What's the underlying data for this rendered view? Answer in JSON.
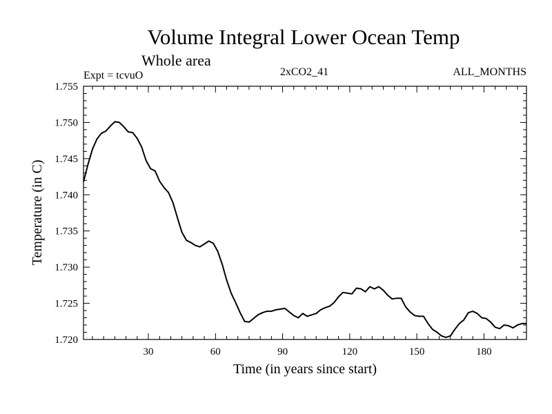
{
  "chart_data": {
    "type": "line",
    "title": "Volume Integral Lower Ocean Temp",
    "subtitle": "Whole area",
    "header_left": "Expt = tcvuO",
    "header_center": "2xCO2_41",
    "header_right": "ALL_MONTHS",
    "xlabel": "Time (in years since start)",
    "ylabel": "Temperature (in C)",
    "xlim": [
      1,
      199
    ],
    "ylim": [
      1.72,
      1.755
    ],
    "xticks": [
      30,
      60,
      90,
      120,
      150,
      180
    ],
    "xtick_labels": [
      "30",
      "60",
      "90",
      "120",
      "150",
      "180"
    ],
    "yticks": [
      1.72,
      1.725,
      1.73,
      1.735,
      1.74,
      1.745,
      1.75,
      1.755
    ],
    "ytick_labels": [
      "1.720",
      "1.725",
      "1.730",
      "1.735",
      "1.740",
      "1.745",
      "1.750",
      "1.755"
    ],
    "grid": false,
    "series": [
      {
        "color": "#000000",
        "x": [
          1,
          3,
          5,
          7,
          9,
          11,
          13,
          15,
          17,
          19,
          21,
          23,
          25,
          27,
          29,
          31,
          33,
          35,
          37,
          39,
          41,
          43,
          45,
          47,
          49,
          51,
          53,
          55,
          57,
          59,
          61,
          63,
          65,
          67,
          69,
          71,
          73,
          75,
          77,
          79,
          81,
          83,
          85,
          87,
          89,
          91,
          93,
          95,
          97,
          99,
          101,
          103,
          105,
          107,
          109,
          111,
          113,
          115,
          117,
          119,
          121,
          123,
          125,
          127,
          129,
          131,
          133,
          135,
          137,
          139,
          141,
          143,
          145,
          147,
          149,
          151,
          153,
          155,
          157,
          159,
          161,
          163,
          165,
          167,
          169,
          171,
          173,
          175,
          177,
          179,
          181,
          183,
          185,
          187,
          189,
          191,
          193,
          195,
          197,
          199
        ],
        "y": [
          1.7418,
          1.7442,
          1.7463,
          1.7477,
          1.7485,
          1.7488,
          1.7495,
          1.7501,
          1.75,
          1.7494,
          1.7487,
          1.7486,
          1.7478,
          1.7466,
          1.7447,
          1.7436,
          1.7433,
          1.7419,
          1.741,
          1.7403,
          1.7389,
          1.7368,
          1.7348,
          1.7337,
          1.7334,
          1.733,
          1.7328,
          1.7332,
          1.7336,
          1.7333,
          1.7322,
          1.7304,
          1.7282,
          1.7264,
          1.7251,
          1.7237,
          1.7225,
          1.7224,
          1.7229,
          1.7234,
          1.7237,
          1.7239,
          1.7239,
          1.7241,
          1.7242,
          1.7243,
          1.7238,
          1.7233,
          1.723,
          1.7236,
          1.7232,
          1.7234,
          1.7236,
          1.7241,
          1.7244,
          1.7246,
          1.7251,
          1.7259,
          1.7265,
          1.7264,
          1.7263,
          1.7271,
          1.727,
          1.7266,
          1.7273,
          1.727,
          1.7273,
          1.7268,
          1.7261,
          1.7256,
          1.7257,
          1.7257,
          1.7245,
          1.7238,
          1.7233,
          1.7232,
          1.7232,
          1.7222,
          1.7214,
          1.721,
          1.7205,
          1.7203,
          1.7205,
          1.7214,
          1.7222,
          1.7227,
          1.7237,
          1.7239,
          1.7236,
          1.723,
          1.7229,
          1.7224,
          1.7217,
          1.7215,
          1.722,
          1.7219,
          1.7216,
          1.722,
          1.7222,
          1.7222
        ]
      }
    ]
  }
}
